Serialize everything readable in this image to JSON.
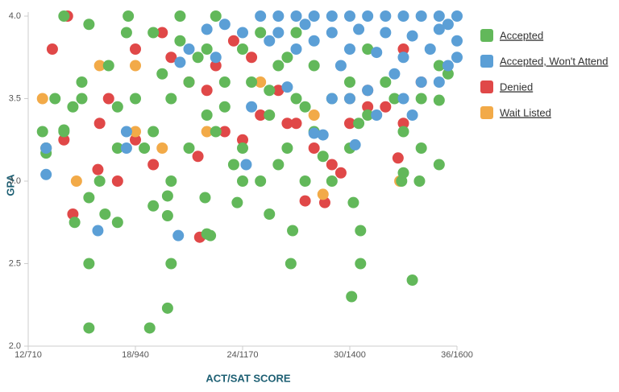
{
  "chart_data": {
    "type": "scatter",
    "x_label": "ACT/SAT SCORE",
    "y_label": "GPA",
    "xlim": [
      12,
      36
    ],
    "xticks": [
      {
        "value": 12,
        "label": "12/710"
      },
      {
        "value": 18,
        "label": "18/940"
      },
      {
        "value": 24,
        "label": "24/1170"
      },
      {
        "value": 30,
        "label": "30/1400"
      },
      {
        "value": 36,
        "label": "36/1600"
      }
    ],
    "ylim": [
      2,
      4
    ],
    "yticks": [
      {
        "value": 2,
        "label": "2.0"
      },
      2.5,
      {
        "value": 3,
        "label": "3.0"
      },
      3.5,
      {
        "value": 4,
        "label": "4.0"
      }
    ],
    "legend": "right",
    "series": [
      {
        "name": "Accepted",
        "color": "#62b85a",
        "x": [
          15.4,
          18.8,
          19.8,
          15.4,
          20,
          26.7,
          30.6,
          30.1,
          33.5,
          22.2,
          22,
          26.8,
          30.6,
          14.6,
          17,
          16.3,
          19.8,
          25.5,
          30.2,
          15.4,
          19,
          21.9,
          19.8,
          23.7,
          35,
          33.9,
          32.9,
          14,
          35,
          14,
          15.4,
          17.6,
          20,
          21,
          22,
          23,
          24,
          25,
          26,
          27,
          28,
          29,
          30,
          31,
          32,
          33,
          34,
          35,
          22,
          21,
          20,
          19,
          18,
          17,
          16,
          15,
          14,
          13,
          16.5,
          17.5,
          19,
          20.5,
          22.5,
          24.5,
          25.5,
          26.5,
          27.5,
          23.5,
          22.5,
          24,
          25,
          26,
          27,
          28,
          29,
          30,
          31,
          23,
          21.5,
          20.5,
          19.5,
          18.5,
          17,
          15,
          14.5,
          13.5,
          12.8,
          13,
          33,
          34,
          35.5,
          24,
          25.5,
          26.5,
          27.5,
          28.5,
          30.5,
          32.5
        ],
        "values": [
          2.11,
          2.11,
          2.23,
          2.5,
          2.5,
          2.5,
          2.5,
          2.3,
          2.4,
          2.67,
          2.68,
          2.7,
          2.7,
          2.75,
          2.75,
          2.8,
          2.79,
          2.8,
          2.87,
          2.9,
          2.85,
          2.9,
          2.91,
          2.87,
          3.1,
          3,
          3,
          3.31,
          3.49,
          4,
          3.95,
          4,
          3,
          3.2,
          3.4,
          3.6,
          3.8,
          3.9,
          3.7,
          3.5,
          3.3,
          3,
          3.2,
          3.4,
          3.6,
          3.3,
          3.2,
          3.7,
          3.8,
          3.6,
          3.5,
          3.3,
          3.5,
          3.2,
          3,
          3.5,
          3.3,
          3.2,
          3.7,
          3.9,
          3.9,
          4,
          4,
          3.6,
          3.4,
          3.2,
          3,
          3.1,
          3.3,
          3.2,
          3,
          3.1,
          3.9,
          3.7,
          3.5,
          3.6,
          3.8,
          3.45,
          3.75,
          3.85,
          3.65,
          3.2,
          3.45,
          3.6,
          3.45,
          3.5,
          3.3,
          3.17,
          3.05,
          3.5,
          3.65,
          3,
          3.55,
          3.75,
          3.45,
          3.15,
          3.35,
          3.5
        ]
      },
      {
        "name": "Accepted, Won't Attend",
        "color": "#5b9fd6",
        "x": [
          25,
          26,
          27,
          28,
          29,
          30,
          31,
          32,
          33,
          34,
          35,
          36,
          26,
          27.5,
          29,
          30.5,
          32,
          33.5,
          35,
          36,
          28,
          30,
          31.5,
          33,
          34.5,
          35.5,
          32.5,
          34,
          35,
          29.5,
          27,
          25.5,
          24,
          23,
          22,
          21,
          20.5,
          22.5,
          31,
          33,
          30,
          24.5,
          26.5,
          13,
          13,
          17.5,
          17.5,
          15.9,
          20.4,
          24.2,
          28.5,
          28,
          31.5,
          33.5,
          30.3,
          29,
          36,
          35.5
        ],
        "values": [
          4,
          4,
          4,
          4,
          4,
          4,
          4,
          4,
          4,
          4,
          4,
          4,
          3.9,
          3.95,
          3.9,
          3.92,
          3.9,
          3.88,
          3.92,
          3.85,
          3.85,
          3.8,
          3.78,
          3.75,
          3.8,
          3.7,
          3.65,
          3.6,
          3.6,
          3.7,
          3.8,
          3.85,
          3.9,
          3.95,
          3.92,
          3.8,
          3.72,
          3.75,
          3.55,
          3.5,
          3.5,
          3.45,
          3.57,
          3.2,
          3.04,
          3.2,
          3.3,
          2.7,
          2.67,
          3.1,
          3.28,
          3.29,
          3.4,
          3.4,
          3.22,
          3.5,
          3.75,
          3.95
        ]
      },
      {
        "name": "Denied",
        "color": "#e04848",
        "x": [
          13.35,
          14.2,
          14.5,
          15.9,
          21.6,
          28.6,
          32.7,
          18,
          19.5,
          20,
          21,
          22,
          23,
          24,
          25,
          26,
          27,
          28,
          29,
          30,
          31,
          32,
          33,
          34,
          16.5,
          17,
          18,
          19,
          21.5,
          22.5,
          23.5,
          24.5,
          26.5,
          27.5,
          29.5,
          31,
          33,
          16,
          14,
          13
        ],
        "values": [
          3.8,
          4,
          2.8,
          3.07,
          2.66,
          2.87,
          3.14,
          3.8,
          3.9,
          3.75,
          3.6,
          3.55,
          3.3,
          3.25,
          3.4,
          3.55,
          3.35,
          3.2,
          3.1,
          3.35,
          3.55,
          3.45,
          3.35,
          3.6,
          3.5,
          3,
          3.25,
          3.1,
          3.15,
          3.7,
          3.85,
          3.75,
          3.35,
          2.88,
          3.05,
          3.45,
          3.8,
          3.35,
          3.25,
          3.2
        ]
      },
      {
        "name": "Wait Listed",
        "color": "#f2aa48",
        "x": [
          12.8,
          14.7,
          28.5,
          32.8,
          18,
          18,
          19.5,
          22,
          28,
          16,
          25,
          30
        ],
        "values": [
          3.5,
          3,
          2.92,
          3,
          3.7,
          3.3,
          3.2,
          3.3,
          3.4,
          3.7,
          3.6,
          3.5
        ]
      }
    ]
  }
}
